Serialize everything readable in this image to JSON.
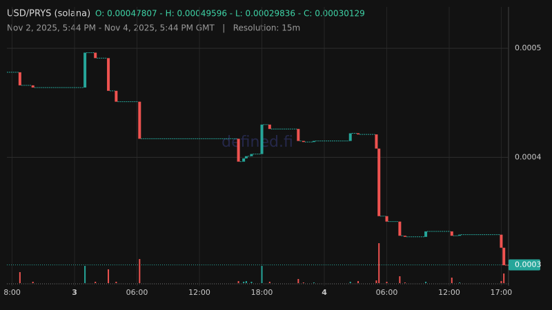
{
  "chart_data": {
    "type": "candlestick",
    "title": "USD/PRYS (solana)",
    "ohlc_text": "O: 0.00047807 - H: 0.00049596 - L: 0.00029836 - C: 0.00030129",
    "subtitle": "Nov 2, 2025, 5:44 PM - Nov 4, 2025, 5:44 PM GMT   |   Resolution: 15m",
    "watermark": "defined.fi",
    "up_color": "#26a69a",
    "down_color": "#ef5350",
    "xlim": [
      -6.5,
      41.7
    ],
    "xticks": [
      {
        "value": -6,
        "label": "8:00"
      },
      {
        "value": 0,
        "label": "3"
      },
      {
        "value": 6,
        "label": "06:00"
      },
      {
        "value": 12,
        "label": "12:00"
      },
      {
        "value": 18,
        "label": "18:00"
      },
      {
        "value": 24,
        "label": "4"
      },
      {
        "value": 30,
        "label": "06:00"
      },
      {
        "value": 36,
        "label": "12:00"
      },
      {
        "value": 41,
        "label": "17:00"
      }
    ],
    "ylim": [
      0.000282,
      0.000538
    ],
    "yticks": [
      0.0005,
      0.0004
    ],
    "last_price": {
      "value": 0.00030129,
      "label": "0.0003"
    },
    "volume_lim": [
      0,
      60
    ],
    "candles": {
      "x": [
        -5.25,
        -4,
        1,
        2,
        3.25,
        4,
        6.25,
        15.75,
        16.25,
        16.5,
        17,
        18,
        18.75,
        21.5,
        22,
        23,
        26.5,
        27.25,
        29,
        29.25,
        30,
        31.25,
        31.75,
        33.75,
        36.25,
        37,
        41,
        41.25
      ],
      "open": [
        0.000478,
        0.000466,
        0.000464,
        0.000496,
        0.000491,
        0.000461,
        0.000451,
        0.000417,
        0.000396,
        0.000399,
        0.000401,
        0.000403,
        0.00043,
        0.000426,
        0.000415,
        0.000414,
        0.000415,
        0.000422,
        0.000421,
        0.000408,
        0.000346,
        0.000341,
        0.000328,
        0.000327,
        0.000332,
        0.000328,
        0.000329,
        0.000317
      ],
      "close": [
        0.000466,
        0.000464,
        0.000496,
        0.000491,
        0.000461,
        0.000451,
        0.000417,
        0.000396,
        0.000399,
        0.000401,
        0.000403,
        0.00043,
        0.000426,
        0.000415,
        0.000414,
        0.000415,
        0.000422,
        0.000421,
        0.000408,
        0.000346,
        0.000341,
        0.000328,
        0.000327,
        0.000332,
        0.000328,
        0.000329,
        0.000317,
        0.000301
      ],
      "volume": [
        16,
        2,
        25,
        2,
        20,
        2,
        35,
        3,
        2,
        3,
        2,
        25,
        2,
        6,
        1,
        1,
        2,
        3,
        4,
        58,
        2,
        10,
        1,
        2,
        8,
        1,
        3,
        14
      ]
    }
  }
}
